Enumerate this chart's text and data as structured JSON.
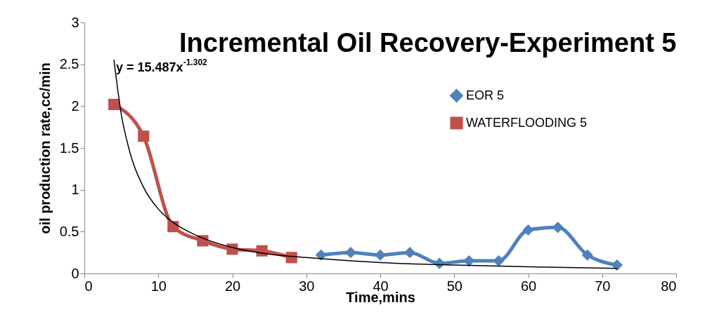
{
  "chart_data": {
    "type": "line",
    "title": "Incremental Oil Recovery-Experiment 5",
    "xlabel": "Time,mins",
    "ylabel": "oil production rate,cc/min",
    "xlim": [
      0,
      80
    ],
    "xticks": [
      0,
      10,
      20,
      30,
      40,
      50,
      60,
      70,
      80
    ],
    "ylim": [
      0,
      3
    ],
    "yticks": [
      0,
      0.5,
      1,
      1.5,
      2,
      2.5,
      3
    ],
    "grid": false,
    "legend": "top right",
    "annotations": [
      "y = 15.487x$^{-1.302}$"
    ],
    "series": [
      {
        "name": "EOR 5",
        "color": "#4f81bd",
        "marker": "diamond",
        "x": [
          32,
          36,
          40,
          44,
          48,
          52,
          56,
          60,
          64,
          68,
          72
        ],
        "values": [
          0.22,
          0.25,
          0.22,
          0.25,
          0.12,
          0.15,
          0.15,
          0.52,
          0.55,
          0.22,
          0.1
        ]
      },
      {
        "name": "WATERFLOODING 5",
        "color": "#c0504d",
        "marker": "square",
        "x": [
          4,
          8,
          12,
          16,
          20,
          24,
          28
        ],
        "values": [
          2.02,
          1.64,
          0.56,
          0.39,
          0.29,
          0.27,
          0.19
        ]
      },
      {
        "type": "line",
        "color": "#000000",
        "marker": "none",
        "x": [
          4,
          5,
          6,
          8,
          10,
          12,
          15,
          20,
          25,
          30,
          40,
          50,
          60,
          72
        ],
        "values": [
          2.55,
          1.9,
          1.5,
          1.03,
          0.77,
          0.61,
          0.46,
          0.31,
          0.23,
          0.19,
          0.13,
          0.1,
          0.08,
          0.06
        ]
      }
    ]
  }
}
